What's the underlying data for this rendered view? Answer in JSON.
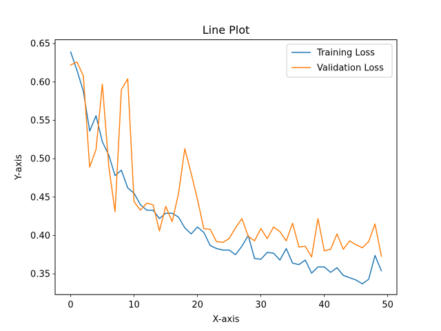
{
  "chart_data": {
    "type": "line",
    "title": "Line Plot",
    "xlabel": "X-axis",
    "ylabel": "Y-axis",
    "xlim": [
      -2.45,
      51.45
    ],
    "ylim": [
      0.323,
      0.655
    ],
    "x_ticks": [
      0,
      10,
      20,
      30,
      40,
      50
    ],
    "y_ticks": [
      0.35,
      0.4,
      0.45,
      0.5,
      0.55,
      0.6,
      0.65
    ],
    "y_tick_labels": [
      "0.35",
      "0.40",
      "0.45",
      "0.50",
      "0.55",
      "0.60",
      "0.65"
    ],
    "grid": false,
    "legend": "top-right",
    "x": [
      0,
      1,
      2,
      3,
      4,
      5,
      6,
      7,
      8,
      9,
      10,
      11,
      12,
      13,
      14,
      15,
      16,
      17,
      18,
      19,
      20,
      21,
      22,
      23,
      24,
      25,
      26,
      27,
      28,
      29,
      30,
      31,
      32,
      33,
      34,
      35,
      36,
      37,
      38,
      39,
      40,
      41,
      42,
      43,
      44,
      45,
      46,
      47,
      48,
      49
    ],
    "series": [
      {
        "name": "Training Loss",
        "color": "#1f77b4",
        "values": [
          0.639,
          0.615,
          0.588,
          0.536,
          0.556,
          0.522,
          0.505,
          0.478,
          0.485,
          0.462,
          0.455,
          0.44,
          0.433,
          0.433,
          0.422,
          0.429,
          0.429,
          0.424,
          0.41,
          0.402,
          0.411,
          0.404,
          0.387,
          0.383,
          0.381,
          0.381,
          0.375,
          0.386,
          0.4,
          0.37,
          0.369,
          0.378,
          0.377,
          0.368,
          0.383,
          0.364,
          0.362,
          0.368,
          0.351,
          0.359,
          0.359,
          0.352,
          0.358,
          0.348,
          0.345,
          0.342,
          0.337,
          0.343,
          0.374,
          0.354
        ]
      },
      {
        "name": "Validation Loss",
        "color": "#ff7f0e",
        "values": [
          0.622,
          0.626,
          0.608,
          0.489,
          0.512,
          0.597,
          0.491,
          0.431,
          0.59,
          0.604,
          0.444,
          0.433,
          0.442,
          0.44,
          0.406,
          0.438,
          0.418,
          0.454,
          0.513,
          0.481,
          0.447,
          0.409,
          0.408,
          0.392,
          0.391,
          0.396,
          0.41,
          0.422,
          0.399,
          0.393,
          0.409,
          0.396,
          0.411,
          0.405,
          0.393,
          0.416,
          0.385,
          0.386,
          0.372,
          0.422,
          0.38,
          0.382,
          0.402,
          0.382,
          0.393,
          0.388,
          0.384,
          0.392,
          0.415,
          0.373
        ]
      }
    ]
  }
}
